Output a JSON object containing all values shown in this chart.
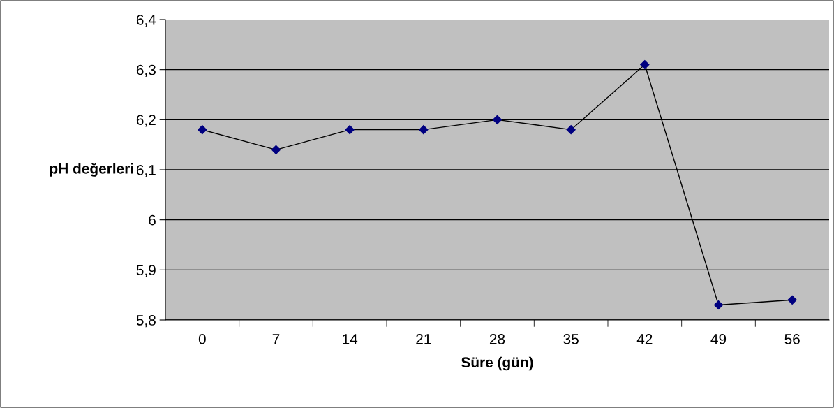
{
  "chart_data": {
    "type": "line",
    "xlabel": "Süre (gün)",
    "ylabel": "pH değerleri",
    "categories": [
      "0",
      "7",
      "14",
      "21",
      "28",
      "35",
      "42",
      "49",
      "56"
    ],
    "series": [
      {
        "color": "#000080",
        "values": [
          6.18,
          6.14,
          6.18,
          6.18,
          6.2,
          6.18,
          6.31,
          5.83,
          5.84
        ]
      }
    ],
    "ylim": [
      5.8,
      6.4
    ],
    "yticks": [
      {
        "value": 5.8,
        "label": "5,8"
      },
      {
        "value": 5.9,
        "label": "5,9"
      },
      {
        "value": 6.0,
        "label": "6"
      },
      {
        "value": 6.1,
        "label": "6,1"
      },
      {
        "value": 6.2,
        "label": "6,2"
      },
      {
        "value": 6.3,
        "label": "6,3"
      },
      {
        "value": 6.4,
        "label": "6,4"
      }
    ],
    "grid": "y",
    "legend": false,
    "marker": "diamond",
    "line_style": "solid"
  }
}
